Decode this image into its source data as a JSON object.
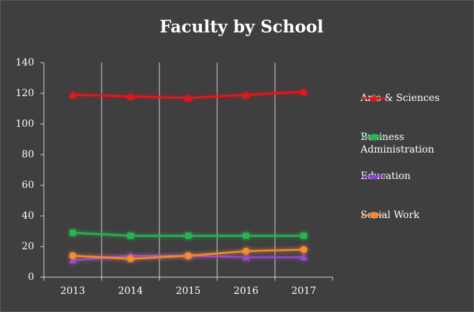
{
  "chart_data": {
    "type": "line",
    "title": "Faculty by School",
    "categories": [
      "2013",
      "2014",
      "2015",
      "2016",
      "2017"
    ],
    "series": [
      {
        "name": "Arts & Sciences",
        "color": "#e8141c",
        "marker": "triangle",
        "values": [
          119,
          118,
          117,
          119,
          121
        ]
      },
      {
        "name": "Business Administration",
        "color": "#2ab450",
        "marker": "square",
        "values": [
          29,
          27,
          27,
          27,
          27
        ]
      },
      {
        "name": "Education",
        "color": "#9448cc",
        "marker": "triangle",
        "values": [
          11,
          14,
          14,
          13,
          13
        ]
      },
      {
        "name": "Social Work",
        "color": "#f58c32",
        "marker": "circle",
        "values": [
          14,
          12,
          14,
          17,
          18
        ]
      }
    ],
    "ylim": [
      0,
      140
    ],
    "yticks": [
      0,
      20,
      40,
      60,
      80,
      100,
      120,
      140
    ],
    "grid": true,
    "legend": "right"
  }
}
